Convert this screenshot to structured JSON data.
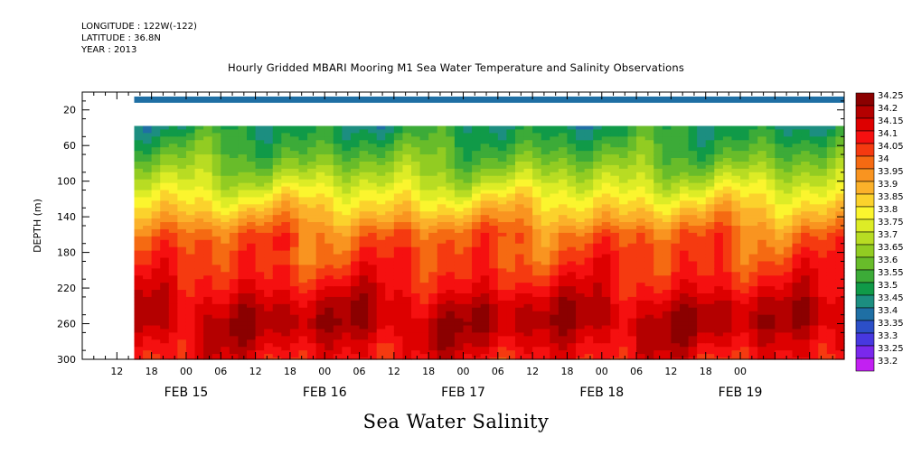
{
  "header": {
    "longitude": "LONGITUDE : 122W(-122)",
    "latitude": "LATITUDE : 36.8N",
    "year": "YEAR : 2013"
  },
  "chart_data": {
    "type": "heatmap",
    "title": "Hourly Gridded MBARI Mooring M1 Sea Water Temperature and Salinity Observations",
    "xlabel": "Sea Water Salinity",
    "ylabel": "DEPTH (m)",
    "x_range_hours": [
      0,
      132
    ],
    "x_tick_labels": [
      "12",
      "18",
      "00",
      "06",
      "12",
      "18",
      "00",
      "06",
      "12",
      "18",
      "00",
      "06",
      "12",
      "18",
      "00",
      "06",
      "12",
      "18",
      "00"
    ],
    "x_day_labels": [
      "FEB 15",
      "FEB 16",
      "FEB 17",
      "FEB 18",
      "FEB 19"
    ],
    "ylim": [
      300,
      0
    ],
    "y_ticks": [
      20,
      60,
      100,
      140,
      180,
      220,
      260,
      300
    ],
    "colorbar": {
      "levels": [
        "34.25",
        "34.2",
        "34.15",
        "34.1",
        "34.05",
        "34",
        "33.95",
        "33.9",
        "33.85",
        "33.8",
        "33.75",
        "33.7",
        "33.65",
        "33.6",
        "33.55",
        "33.5",
        "33.45",
        "33.4",
        "33.35",
        "33.3",
        "33.25",
        "33.2"
      ],
      "colors": [
        "#8b0000",
        "#b40000",
        "#dd0000",
        "#f51010",
        "#f53a10",
        "#f56a12",
        "#f99420",
        "#fbb12a",
        "#fbd22c",
        "#fbf52e",
        "#ddec26",
        "#b8dc23",
        "#92cc22",
        "#68bc2a",
        "#3cab38",
        "#109a48",
        "#1c8e80",
        "#1f6fa4",
        "#2c4fc8",
        "#4738e0",
        "#7a28ec",
        "#c220f2"
      ]
    },
    "data_extent": {
      "x_start_hour": 9,
      "x_end_hour": 132,
      "surface_bin_depth": [
        5,
        12
      ],
      "profile_top_depth": 38,
      "bottom_depth": 300
    },
    "profile": [
      {
        "depth": 40,
        "salinity": 33.52
      },
      {
        "depth": 60,
        "salinity": 33.58
      },
      {
        "depth": 80,
        "salinity": 33.65
      },
      {
        "depth": 100,
        "salinity": 33.74
      },
      {
        "depth": 120,
        "salinity": 33.84
      },
      {
        "depth": 140,
        "salinity": 33.93
      },
      {
        "depth": 160,
        "salinity": 34.03
      },
      {
        "depth": 180,
        "salinity": 34.06
      },
      {
        "depth": 200,
        "salinity": 34.09
      },
      {
        "depth": 220,
        "salinity": 34.14
      },
      {
        "depth": 240,
        "salinity": 34.2
      },
      {
        "depth": 260,
        "salinity": 34.23
      },
      {
        "depth": 280,
        "salinity": 34.18
      },
      {
        "depth": 300,
        "salinity": 34.13
      }
    ],
    "surface_salinity": 33.4
  }
}
